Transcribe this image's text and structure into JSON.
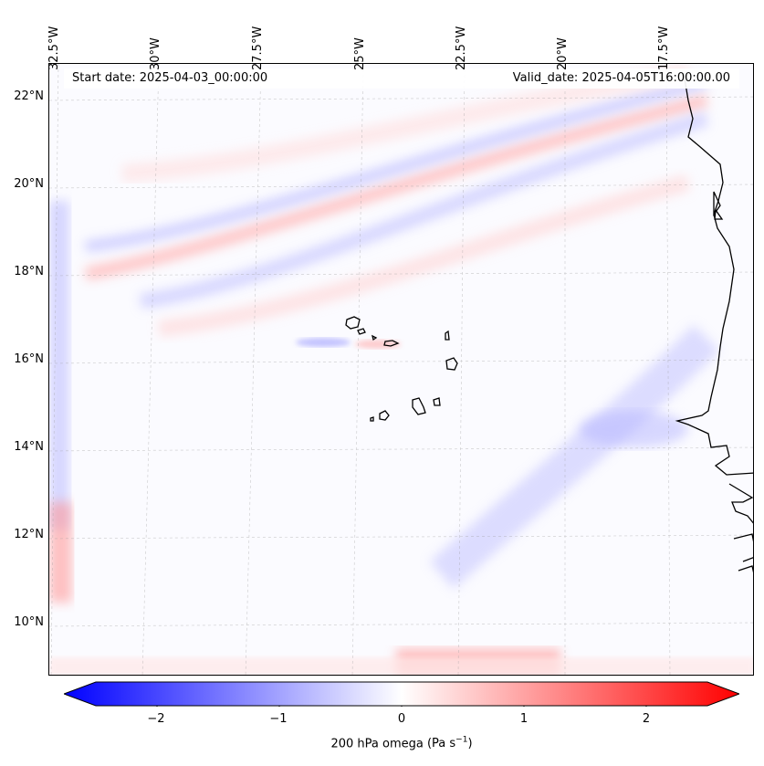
{
  "header": {
    "start_date": "Start date: 2025-04-03_00:00:00",
    "valid_date": "Valid_date: 2025-04-05T16:00:00.00"
  },
  "longitudes": [
    "32.5°W",
    "30°W",
    "27.5°W",
    "25°W",
    "22.5°W",
    "20°W",
    "17.5°W"
  ],
  "latitudes": [
    "22°N",
    "20°N",
    "18°N",
    "16°N",
    "14°N",
    "12°N",
    "10°N"
  ],
  "colorbar": {
    "variable": "200 hPa omega",
    "unit_prefix": "(Pa s",
    "unit_exp": "−1",
    "unit_suffix": ")",
    "ticks": [
      "−2",
      "−1",
      "0",
      "1",
      "2"
    ],
    "tick_values": [
      -2,
      -1,
      0,
      1,
      2
    ],
    "range": [
      -2.5,
      2.5
    ],
    "colormap": "bwr",
    "low_color": "#0000ff",
    "mid_color": "#ffffff",
    "high_color": "#ff0000"
  },
  "map": {
    "field": "omega",
    "pressure_level": "200 hPa",
    "projection": "lambert-conformal",
    "gridlines": true,
    "coastline_color": "#000000",
    "features": [
      "cape-verde-islands",
      "west-africa-coastline"
    ]
  }
}
